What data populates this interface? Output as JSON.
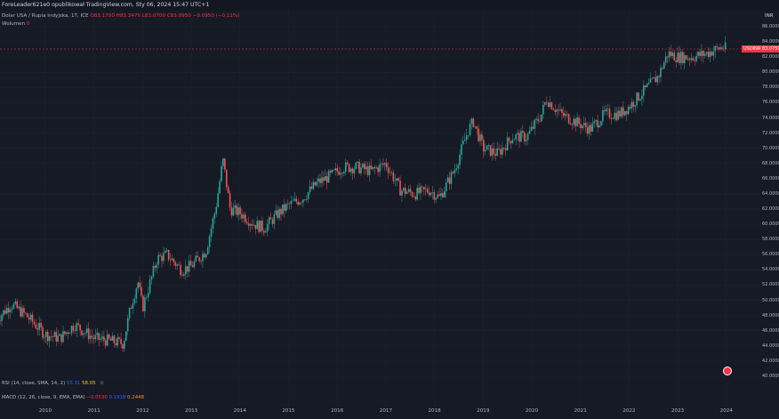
{
  "header": {
    "title": "ForeLeader621e0 opublikował TradingView.com, Sty 06, 2024 15:47 UTC+1"
  },
  "legend": {
    "symbol": "Dolar USA / Rupia Indyjska, 1T, ICE",
    "ohlc": "O83.1700 H83.3475 L83.0700 C83.0950 −0.0950 (−0.11%)",
    "volume_label": "Wolumen",
    "volume_value": "0"
  },
  "price_axis": {
    "currency": "INR",
    "labels": [
      "86.0000",
      "84.0000",
      "82.0000",
      "80.0000",
      "78.0000",
      "76.0000",
      "74.0000",
      "72.0000",
      "70.0000",
      "68.0000",
      "66.0000",
      "64.0000",
      "62.0000",
      "60.0000",
      "58.0000",
      "56.0000",
      "54.0000",
      "52.0000",
      "50.0000",
      "48.0000",
      "46.0000",
      "44.0000",
      "42.0000",
      "40.0000"
    ],
    "symbol_tag": "USDINR",
    "current_price": "83.0750"
  },
  "indicators": {
    "rsi": {
      "label": "RSI (14, close, SMA, 14, 2)",
      "v1": "55.31",
      "v2": "58.05"
    },
    "macd": {
      "label": "MACD (12, 26, close, 9, EMA, EMA)",
      "v1": "−0.0530",
      "v2": "0.1918",
      "v3": "0.2448"
    }
  },
  "time_axis": {
    "labels": [
      "2010",
      "2011",
      "2012",
      "2013",
      "2014",
      "2015",
      "2016",
      "2017",
      "2018",
      "2019",
      "2020",
      "2021",
      "2022",
      "2023",
      "2024"
    ]
  },
  "colors": {
    "up": "#26a69a",
    "down": "#ef5350",
    "bg": "#161a25"
  },
  "chart_data": {
    "type": "line",
    "title": "",
    "xlabel": "",
    "ylabel": "",
    "ylim": [
      40,
      86
    ],
    "x": [
      2009.0,
      2009.3,
      2009.6,
      2010.0,
      2010.3,
      2010.6,
      2011.0,
      2011.3,
      2011.6,
      2011.75,
      2011.9,
      2012.0,
      2012.3,
      2012.5,
      2012.8,
      2013.0,
      2013.3,
      2013.5,
      2013.65,
      2013.8,
      2014.0,
      2014.3,
      2014.5,
      2014.8,
      2015.0,
      2015.3,
      2015.6,
      2015.9,
      2016.1,
      2016.4,
      2016.7,
      2017.0,
      2017.3,
      2017.6,
      2017.9,
      2018.1,
      2018.4,
      2018.7,
      2018.8,
      2019.0,
      2019.3,
      2019.6,
      2019.9,
      2020.2,
      2020.3,
      2020.6,
      2020.9,
      2021.2,
      2021.5,
      2021.8,
      2022.0,
      2022.3,
      2022.6,
      2022.8,
      2023.0,
      2023.3,
      2023.6,
      2023.9,
      2024.0
    ],
    "series": [
      {
        "values": [
          47.5,
          49.5,
          48.0,
          45.5,
          45.0,
          46.8,
          45.0,
          44.7,
          44.3,
          49.0,
          52.5,
          49.0,
          55.5,
          56.0,
          54.0,
          54.5,
          56.5,
          62.0,
          68.5,
          62.0,
          61.5,
          60.0,
          59.5,
          61.5,
          62.5,
          63.5,
          65.5,
          66.5,
          67.5,
          67.5,
          67.0,
          68.0,
          64.5,
          64.0,
          64.5,
          63.5,
          67.0,
          72.5,
          73.5,
          70.0,
          69.3,
          71.5,
          71.5,
          74.5,
          76.5,
          74.5,
          73.5,
          72.5,
          74.5,
          74.5,
          75.5,
          77.5,
          79.5,
          82.5,
          82.0,
          82.0,
          82.5,
          83.3,
          83.1
        ]
      }
    ]
  }
}
